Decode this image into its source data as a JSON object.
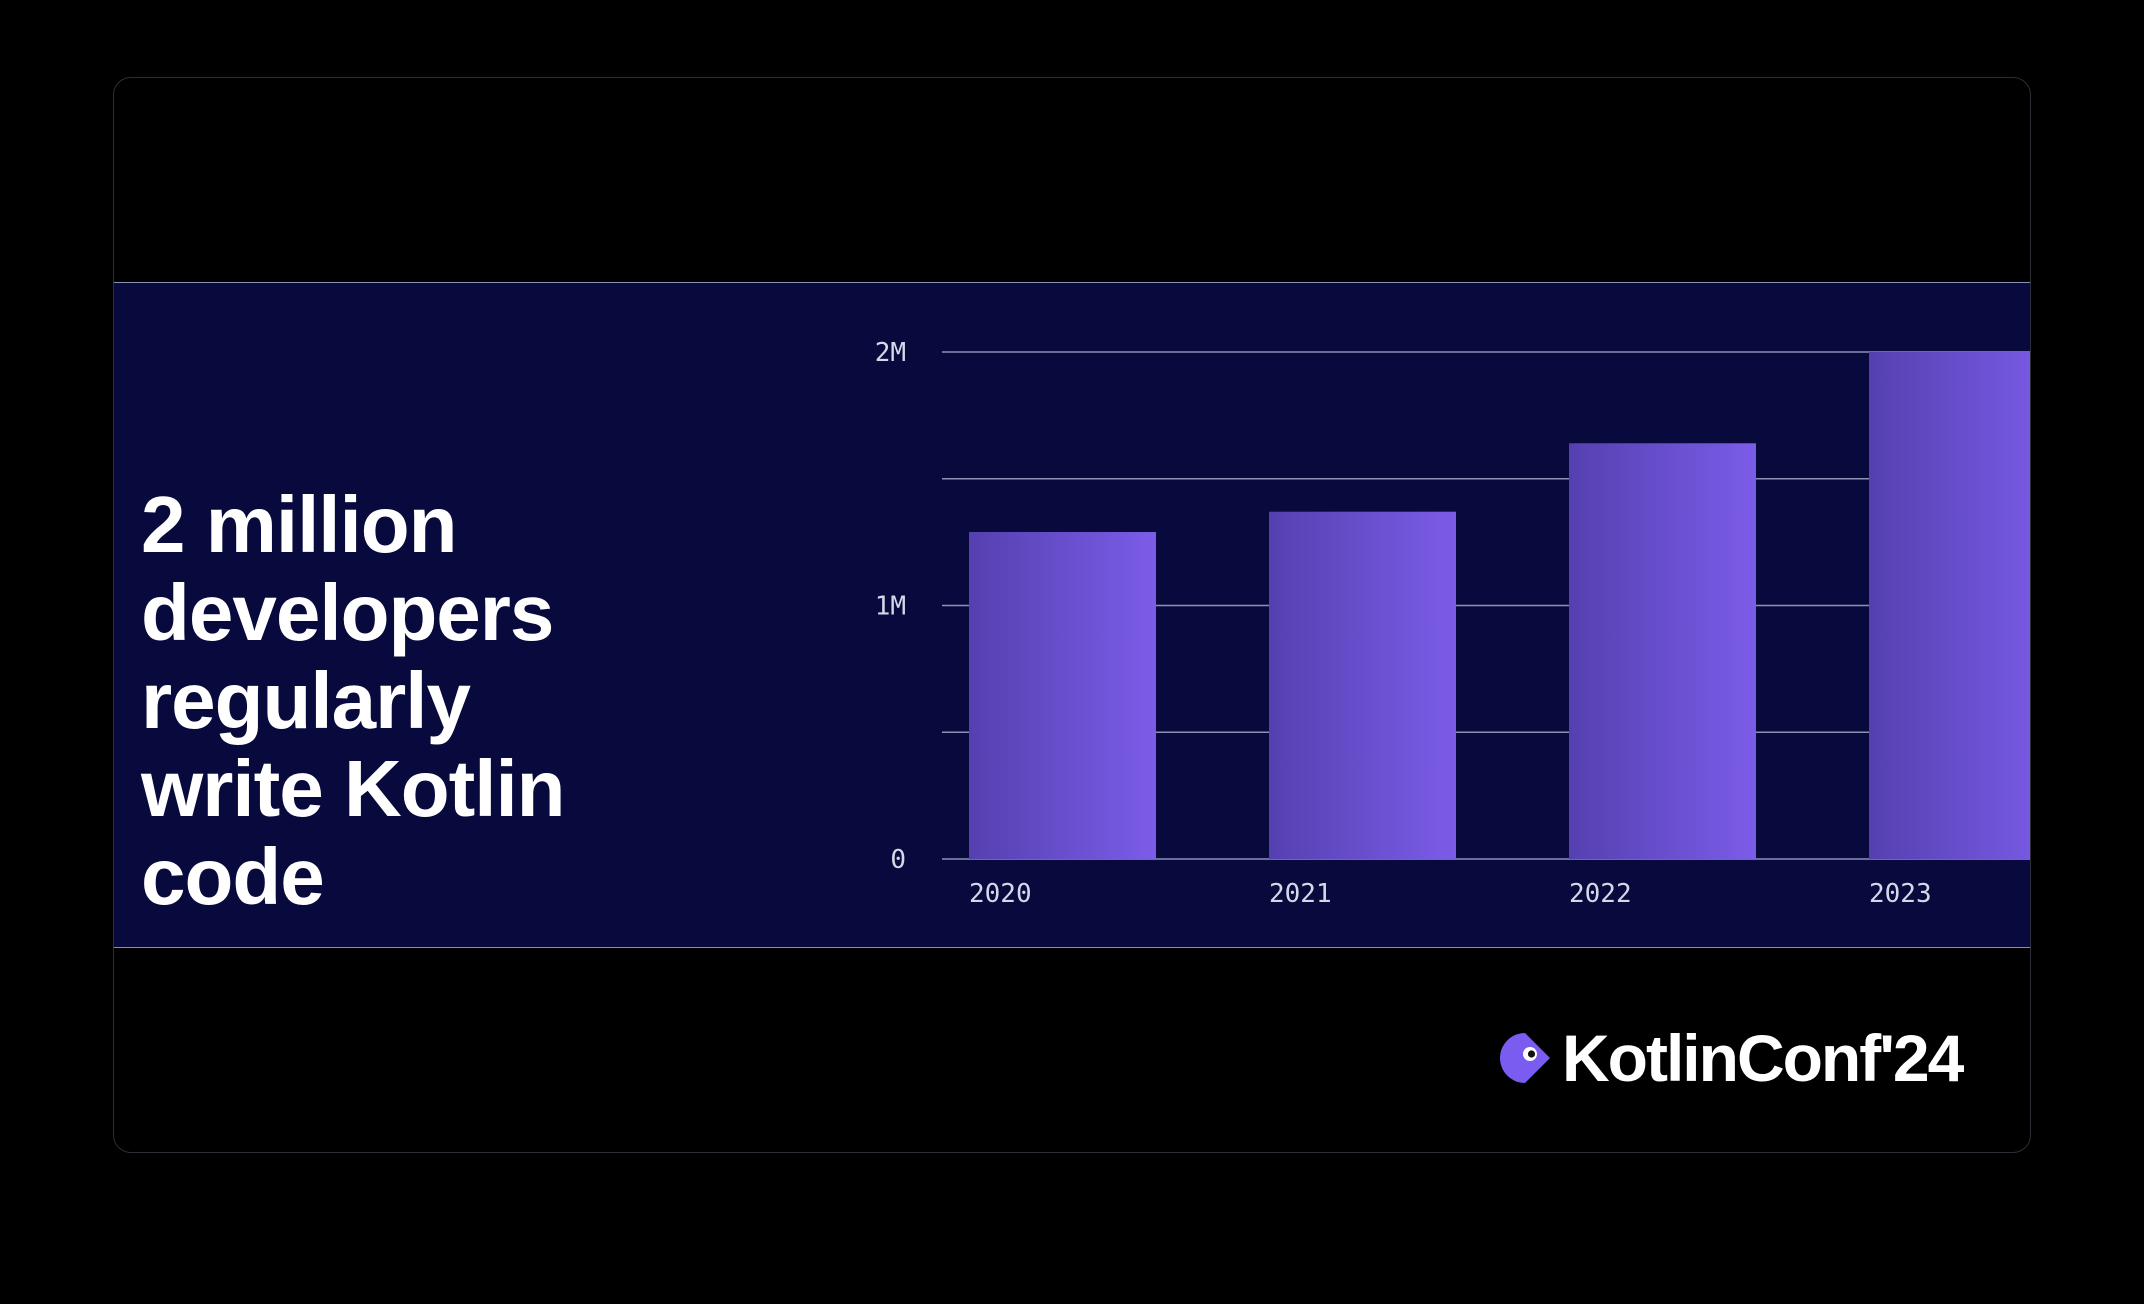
{
  "headline": {
    "lines": [
      "2 million",
      "developers",
      "regularly",
      "write Kotlin",
      "code"
    ]
  },
  "brand": {
    "name": "KotlinConf'24",
    "icon": "kotlinconf-logo-icon",
    "accent": "#7b5cf0"
  },
  "colors": {
    "background": "#000000",
    "band": "#080a3d",
    "bar_start": "#5540b0",
    "bar_end": "#7b5ce8"
  },
  "chart_data": {
    "type": "bar",
    "categories": [
      "2020",
      "2021",
      "2022",
      "2023"
    ],
    "values": [
      1290000,
      1370000,
      1640000,
      2000000
    ],
    "ylim": [
      0,
      2000000
    ],
    "yticks": [
      {
        "value": 0,
        "label": "0"
      },
      {
        "value": 500000,
        "label": ""
      },
      {
        "value": 1000000,
        "label": "1M"
      },
      {
        "value": 1500000,
        "label": ""
      },
      {
        "value": 2000000,
        "label": "2M"
      }
    ],
    "title": "",
    "xlabel": "",
    "ylabel": "",
    "grid": true
  }
}
